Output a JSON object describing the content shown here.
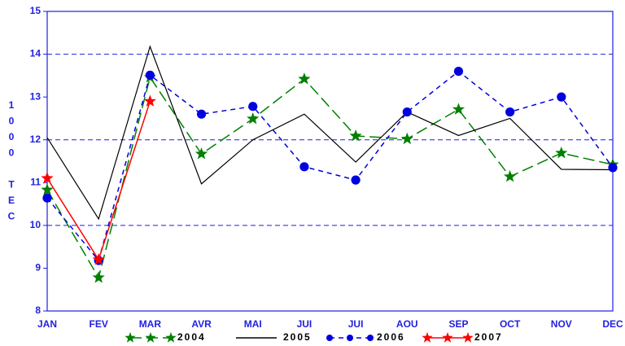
{
  "chart_data": {
    "type": "line",
    "y_label": "1000 TEC",
    "categories": [
      "JAN",
      "FEV",
      "MAR",
      "AVR",
      "MAI",
      "JUI",
      "JUI",
      "AOU",
      "SEP",
      "OCT",
      "NOV",
      "DEC"
    ],
    "series": [
      {
        "name": "2004",
        "color": "#008000",
        "dash": "14 6",
        "marker": "star",
        "values": [
          10.83,
          8.78,
          13.46,
          11.67,
          12.49,
          13.42,
          12.09,
          12.02,
          12.71,
          11.14,
          11.69,
          11.42
        ]
      },
      {
        "name": "2005",
        "color": "#000000",
        "dash": "none",
        "marker": "none",
        "values": [
          12.05,
          10.15,
          14.18,
          10.97,
          12.0,
          12.6,
          11.48,
          12.65,
          12.1,
          12.5,
          11.31,
          11.3
        ]
      },
      {
        "name": "2006",
        "color": "#0000e0",
        "dash": "6 5",
        "marker": "circle",
        "values": [
          10.64,
          9.18,
          13.51,
          12.6,
          12.78,
          11.37,
          11.06,
          12.65,
          13.6,
          12.65,
          13.0,
          11.35
        ]
      },
      {
        "name": "2007",
        "color": "#ff0000",
        "dash": "none",
        "marker": "star",
        "values": [
          11.1,
          9.2,
          12.9,
          null,
          null,
          null,
          null,
          null,
          null,
          null,
          null,
          null
        ]
      }
    ],
    "ylim": [
      8,
      15
    ],
    "yticks": [
      8,
      9,
      10,
      11,
      12,
      13,
      14,
      15
    ],
    "grid": true
  }
}
